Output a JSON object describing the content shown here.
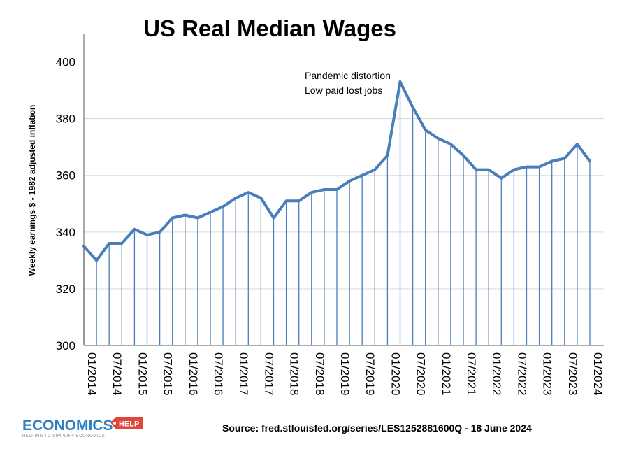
{
  "chart_data": {
    "type": "line",
    "title": "US Real Median Wages",
    "ylabel": "Weekly earnings $ - 1982 adjusted inflation",
    "xlabel": "",
    "ylim": [
      300,
      410
    ],
    "yticks": [
      300,
      320,
      340,
      360,
      380,
      400
    ],
    "grid": "horizontal",
    "drop_lines": true,
    "line_color": "#4a7ebb",
    "x_tick_labels": [
      "01/2014",
      "07/2014",
      "01/2015",
      "07/2015",
      "01/2016",
      "07/2016",
      "01/2017",
      "07/2017",
      "01/2018",
      "07/2018",
      "01/2019",
      "07/2019",
      "01/2020",
      "07/2020",
      "01/2021",
      "07/2021",
      "01/2022",
      "07/2022",
      "01/2023",
      "07/2023",
      "01/2024"
    ],
    "x": [
      "2014-Q1",
      "2014-Q2",
      "2014-Q3",
      "2014-Q4",
      "2015-Q1",
      "2015-Q2",
      "2015-Q3",
      "2015-Q4",
      "2016-Q1",
      "2016-Q2",
      "2016-Q3",
      "2016-Q4",
      "2017-Q1",
      "2017-Q2",
      "2017-Q3",
      "2017-Q4",
      "2018-Q1",
      "2018-Q2",
      "2018-Q3",
      "2018-Q4",
      "2019-Q1",
      "2019-Q2",
      "2019-Q3",
      "2019-Q4",
      "2020-Q1",
      "2020-Q2",
      "2020-Q3",
      "2020-Q4",
      "2021-Q1",
      "2021-Q2",
      "2021-Q3",
      "2021-Q4",
      "2022-Q1",
      "2022-Q2",
      "2022-Q3",
      "2022-Q4",
      "2023-Q1",
      "2023-Q2",
      "2023-Q3",
      "2023-Q4",
      "2024-Q1"
    ],
    "values": [
      335,
      330,
      336,
      336,
      341,
      339,
      340,
      345,
      346,
      345,
      347,
      349,
      352,
      354,
      352,
      345,
      351,
      351,
      354,
      355,
      355,
      358,
      360,
      362,
      367,
      393,
      384,
      376,
      373,
      371,
      367,
      362,
      362,
      359,
      362,
      363,
      363,
      365,
      366,
      371,
      365
    ],
    "annotation": [
      "Pandemic distortion",
      "Low paid lost jobs"
    ]
  },
  "footer": {
    "source": "Source: fred.stlouisfed.org/series/LES1252881600Q - 18 June 2024",
    "logo_main": "ECONOMICS",
    "logo_tag": "HELP",
    "logo_sub": "HELPING TO SIMPLIFY ECONOMICS",
    "logo_main_color": "#2e7fc0",
    "logo_tag_color": "#e2453c"
  }
}
